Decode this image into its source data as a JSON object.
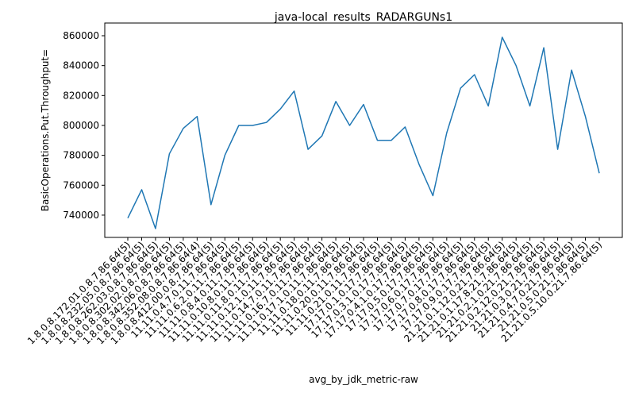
{
  "chart_data": {
    "type": "line",
    "title": "java-local_results_RADARGUNs1",
    "x_label": "avg_by_jdk_metric-raw",
    "y_label": "BasicOperations.Put.Throughput=",
    "categories": [
      "1.8.0.8.172.01.0.8.7.86.64(5)",
      "1.8.0.8.232.05.0.8.7.86.64(5)",
      "1.8.0.8.262.03.0.8.7.86.64(5)",
      "1.8.0.8.302.02.0.8.7.86.64(5)",
      "1.8.0.8.342.06.0.8.7.86.64(5)",
      "1.8.0.8.352.08.0.8.7.86.64(4)",
      "1.8.0.8.412.00.0.8.7.86.64(5)",
      "11.11.0.4.7.0.11.7.86.64(5)",
      "11.11.0.6.2.0.11.7.86.64(5)",
      "11.11.0.8.4.0.11.7.86.64(5)",
      "11.11.0.10.8.0.11.7.86.64(5)",
      "11.11.0.11.8.0.11.7.86.64(5)",
      "11.11.0.12.1.0.11.7.86.64(5)",
      "11.11.0.14.7.0.11.7.86.64(5)",
      "11.11.0.16.7.0.11.7.86.64(5)",
      "11.11.0.17.1.0.11.7.86.64(5)",
      "11.11.0.18.0.11.7.86.64(5)",
      "11.11.0.20.0.11.7.86.64(5)",
      "11.11.0.21.0.11.7.86.64(5)",
      "17.17.0.1.0.17.7.86.64(5)",
      "17.17.0.3.1.0.17.7.86.64(5)",
      "17.17.0.4.1.0.17.7.86.64(5)",
      "17.17.0.5.0.17.7.86.64(5)",
      "17.17.0.6.0.17.7.86.64(5)",
      "17.17.0.7.0.17.7.86.64(5)",
      "17.17.0.8.0.17.7.86.64(5)",
      "17.17.0.9.0.17.7.86.64(5)",
      "21.21.0.1.12.0.21.7.86.64(5)",
      "21.21.0.1.17.8.21.7.86.64(5)",
      "21.21.0.2.1.0.21.7.86.64(5)",
      "21.21.0.2.12.0.21.7.86.64(5)",
      "21.21.0.3.0.21.7.86.64(5)",
      "21.21.0.4.7.0.21.7.86.64(5)",
      "21.21.0.5.0.21.7.86.64(5)",
      "21.21.0.5.10.0.21.7.86.64(5)"
    ],
    "values": [
      738000,
      757000,
      731000,
      781000,
      798000,
      806000,
      747000,
      780000,
      800000,
      800000,
      802000,
      811000,
      823000,
      784000,
      793000,
      816000,
      800000,
      814000,
      790000,
      790000,
      799000,
      774000,
      753000,
      795000,
      825000,
      834000,
      813000,
      859000,
      840000,
      813000,
      852000,
      784000,
      837000,
      806000,
      768000
    ],
    "color": "#1f77b4",
    "ylim": [
      725100,
      868500
    ],
    "yticks": [
      740000,
      760000,
      780000,
      800000,
      820000,
      840000,
      860000
    ]
  }
}
